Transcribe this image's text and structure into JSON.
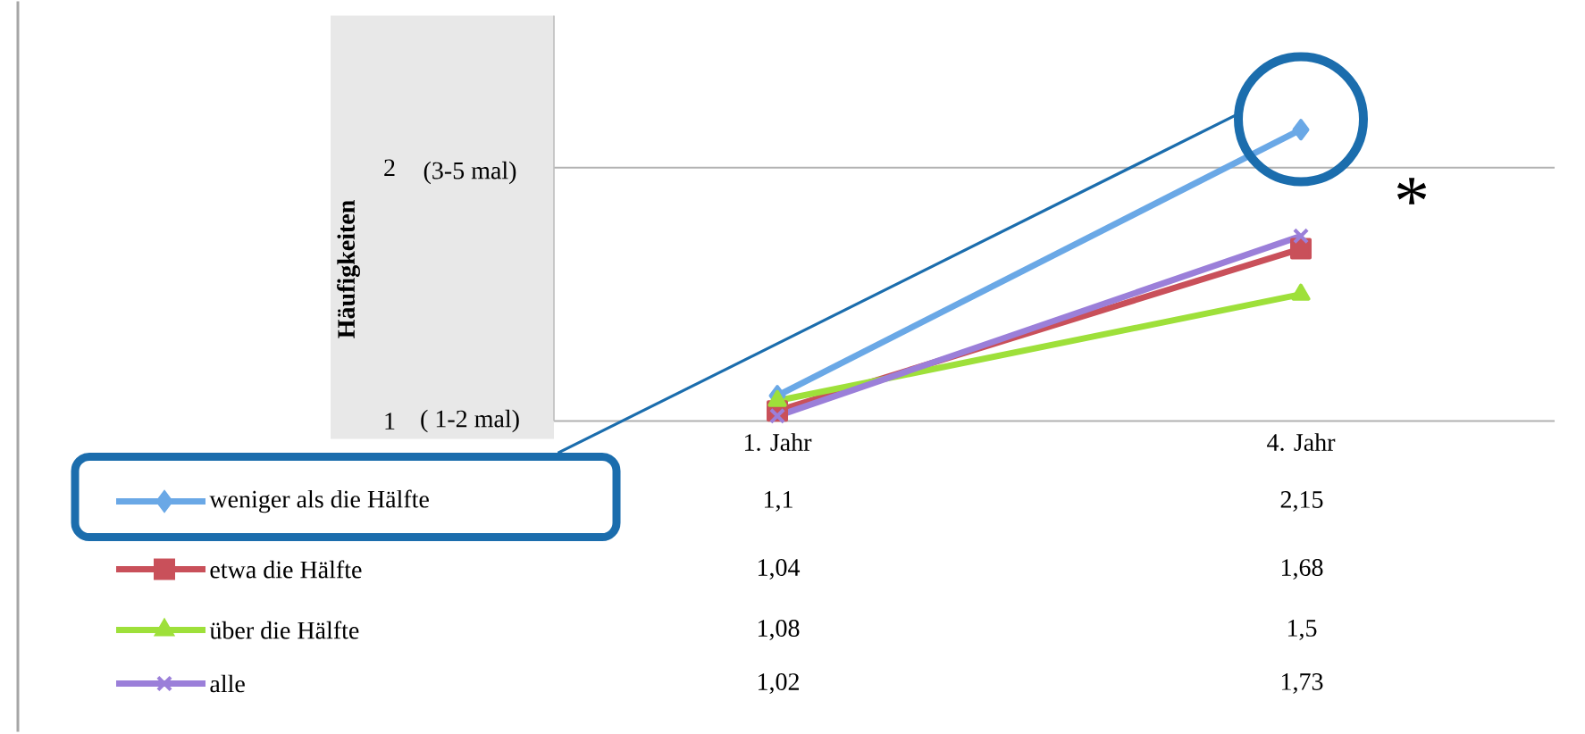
{
  "chart_data": {
    "type": "line",
    "ylabel": "Häufigkeiten",
    "categories": [
      "1. Jahr",
      "4. Jahr"
    ],
    "ylim": [
      1,
      2.6
    ],
    "yticks": [
      1,
      2
    ],
    "grid": "y",
    "legend": "bottom",
    "line_style": "solid",
    "series": [
      {
        "name": "weniger als die Hälfte",
        "color": "#6aa8e6",
        "marker": "diamond",
        "values": [
          1.1,
          2.15
        ],
        "value_labels": [
          "1,1",
          "2,15"
        ]
      },
      {
        "name": "etwa die Hälfte",
        "color": "#c9505a",
        "marker": "square",
        "values": [
          1.04,
          1.68
        ],
        "value_labels": [
          "1,04",
          "1,68"
        ]
      },
      {
        "name": "über die Hälfte",
        "color": "#9ee03a",
        "marker": "triangle",
        "values": [
          1.08,
          1.5
        ],
        "value_labels": [
          "1,08",
          "1,5"
        ]
      },
      {
        "name": "alle",
        "color": "#9b7fd9",
        "marker": "cross",
        "values": [
          1.02,
          1.73
        ],
        "value_labels": [
          "1,02",
          "1,73"
        ]
      }
    ],
    "annotations": [
      "*",
      "( 1-2 mal)",
      "(3-5 mal)"
    ]
  }
}
